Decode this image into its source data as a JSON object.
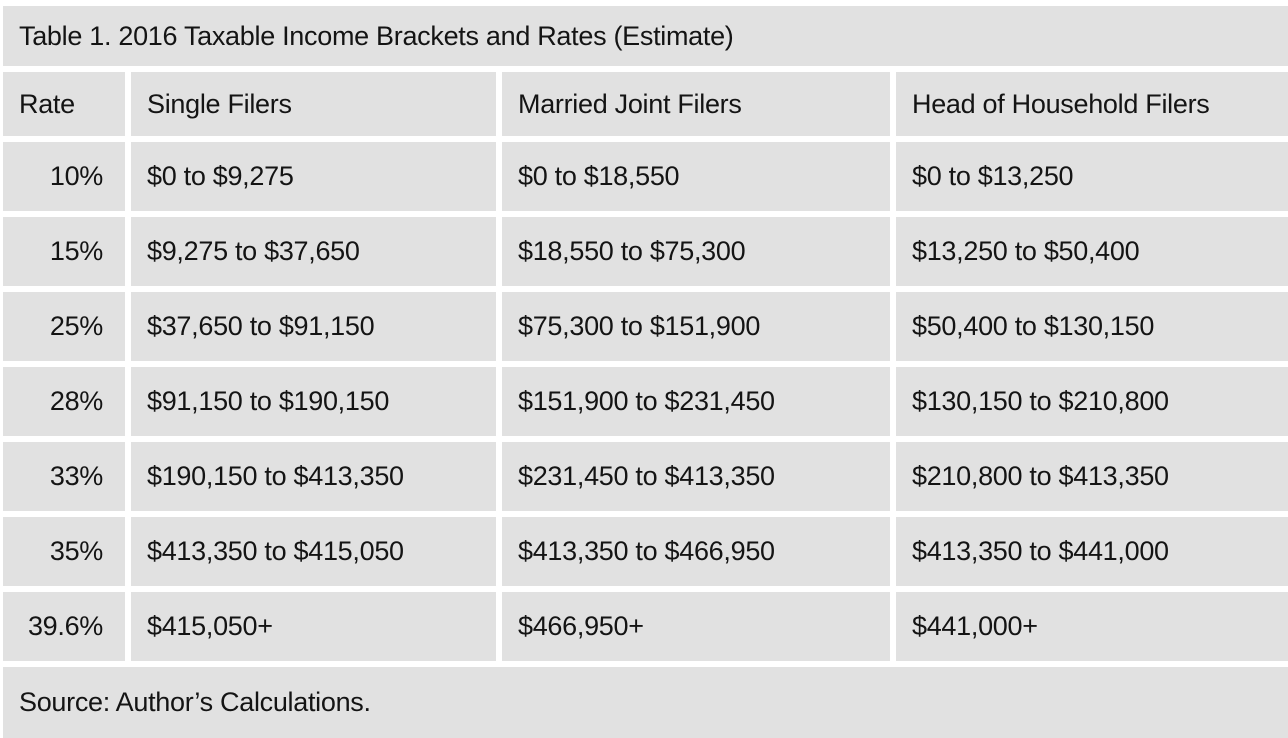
{
  "chart_data": {
    "type": "table",
    "title": "Table 1. 2016 Taxable Income Brackets and Rates (Estimate)",
    "columns": [
      "Rate",
      "Single Filers",
      "Married Joint Filers",
      "Head of Household Filers"
    ],
    "rows": [
      [
        "10%",
        "$0 to $9,275",
        "$0 to $18,550",
        "$0 to $13,250"
      ],
      [
        "15%",
        "$9,275 to $37,650",
        "$18,550 to $75,300",
        "$13,250 to $50,400"
      ],
      [
        "25%",
        "$37,650 to $91,150",
        "$75,300 to $151,900",
        "$50,400 to $130,150"
      ],
      [
        "28%",
        "$91,150 to $190,150",
        "$151,900 to $231,450",
        "$130,150 to $210,800"
      ],
      [
        "33%",
        "$190,150 to $413,350",
        "$231,450 to $413,350",
        "$210,800 to $413,350"
      ],
      [
        "35%",
        "$413,350 to $415,050",
        "$413,350 to $466,950",
        "$413,350 to $441,000"
      ],
      [
        "39.6%",
        "$415,050+",
        "$466,950+",
        "$441,000+"
      ]
    ],
    "source": "Source: Author’s Calculations.",
    "layout": {
      "grid": "on",
      "rate_column_alignment": "right",
      "value_column_alignment": "left"
    },
    "colors": {
      "cell_background": "#e1e1e1",
      "grid_lines": "#ffffff",
      "text": "#141414"
    }
  }
}
